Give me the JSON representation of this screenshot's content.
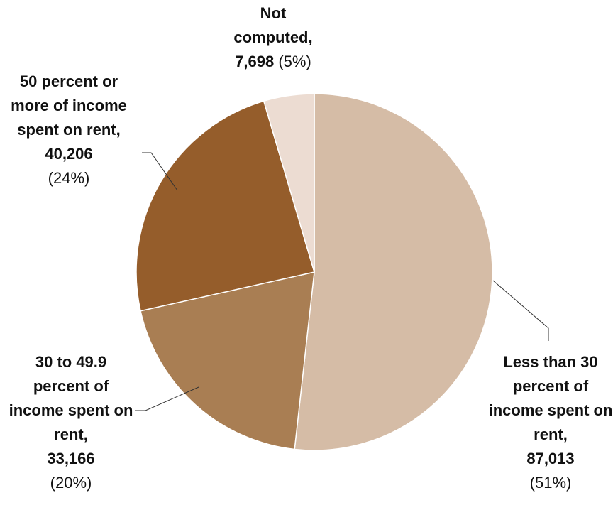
{
  "chart_data": {
    "type": "pie",
    "categories": [
      "Less than 30 percent of income spent on rent,",
      "30 to 49.9 percent of income spent on rent,",
      "50 percent or more of income spent on rent,",
      "Not computed,"
    ],
    "values": [
      87013,
      33166,
      40206,
      7698
    ],
    "value_labels": [
      "87,013",
      "33,166",
      "40,206",
      "7,698"
    ],
    "percents": [
      51,
      20,
      24,
      5
    ],
    "percent_labels": [
      "(51%)",
      "(20%)",
      "(24%)",
      "(5%)"
    ],
    "colors": [
      "#d5bca6",
      "#a97e53",
      "#955d2b",
      "#ecdcd2"
    ]
  }
}
